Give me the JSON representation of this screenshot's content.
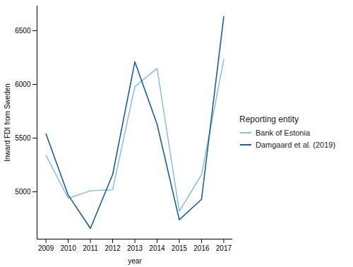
{
  "chart_data": {
    "type": "line",
    "x_label": "year",
    "y_label": "Inward FDI from Sweden",
    "legend_title": "Reporting entity",
    "legend": "right",
    "x": [
      2009,
      2010,
      2011,
      2012,
      2013,
      2014,
      2015,
      2016,
      2017
    ],
    "series": [
      {
        "name": "Bank of Estonia",
        "color": "#93bfdf",
        "values": [
          5340,
          4940,
          5010,
          5020,
          5980,
          6150,
          4820,
          5160,
          6230
        ]
      },
      {
        "name": "Damgaard et al. (2019)",
        "color": "#1b5f93",
        "values": [
          5540,
          4970,
          4660,
          5160,
          6210,
          5630,
          4740,
          4930,
          6630
        ]
      }
    ],
    "xlim": [
      2008.6,
      2017.4
    ],
    "xticks": [
      2009,
      2010,
      2011,
      2012,
      2013,
      2014,
      2015,
      2016,
      2017
    ],
    "ylim": [
      4560,
      6730
    ],
    "yticks": [
      5000,
      5500,
      6000,
      6500
    ],
    "grid": false
  }
}
